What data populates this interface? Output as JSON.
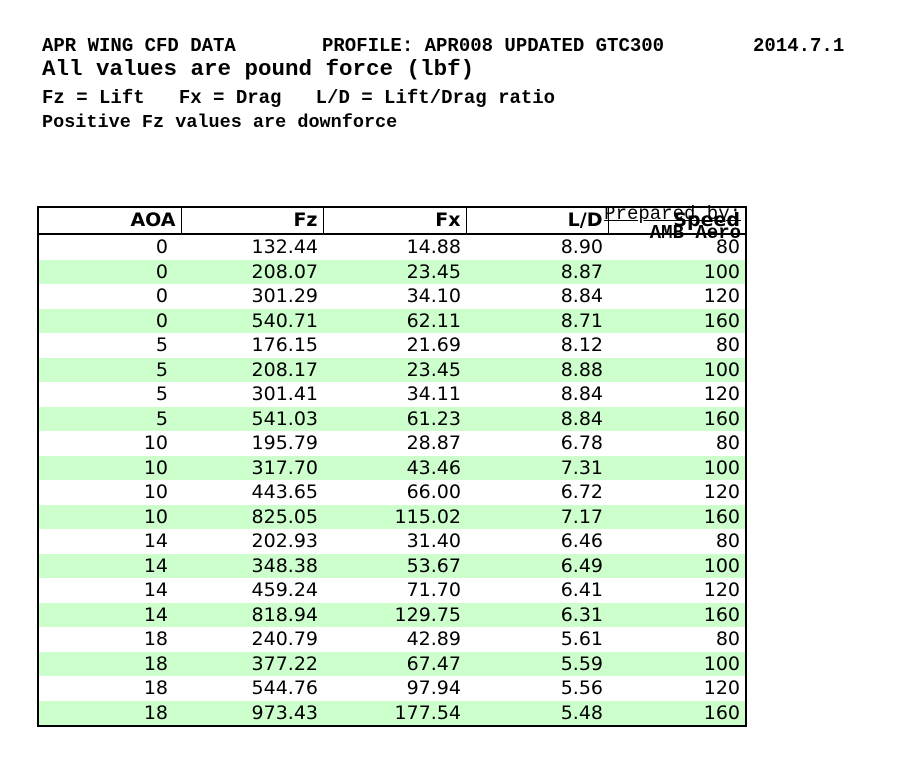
{
  "header": {
    "title": "APR WING CFD DATA",
    "profile": "PROFILE: APR008 UPDATED GTC300",
    "date": "2014.7.1",
    "subtitle": "All values are pound force (lbf)",
    "legend": "Fz = Lift   Fx = Drag   L/D = Lift/Drag ratio",
    "note": "Positive Fz values are downforce"
  },
  "prepared_by": {
    "label": "Prepared by:",
    "value": "AMB Aero"
  },
  "table": {
    "columns": [
      "AOA",
      "Fz",
      "Fx",
      "L/D",
      "Speed"
    ],
    "rows": [
      [
        "0",
        "132.44",
        "14.88",
        "8.90",
        "80"
      ],
      [
        "0",
        "208.07",
        "23.45",
        "8.87",
        "100"
      ],
      [
        "0",
        "301.29",
        "34.10",
        "8.84",
        "120"
      ],
      [
        "0",
        "540.71",
        "62.11",
        "8.71",
        "160"
      ],
      [
        "5",
        "176.15",
        "21.69",
        "8.12",
        "80"
      ],
      [
        "5",
        "208.17",
        "23.45",
        "8.88",
        "100"
      ],
      [
        "5",
        "301.41",
        "34.11",
        "8.84",
        "120"
      ],
      [
        "5",
        "541.03",
        "61.23",
        "8.84",
        "160"
      ],
      [
        "10",
        "195.79",
        "28.87",
        "6.78",
        "80"
      ],
      [
        "10",
        "317.70",
        "43.46",
        "7.31",
        "100"
      ],
      [
        "10",
        "443.65",
        "66.00",
        "6.72",
        "120"
      ],
      [
        "10",
        "825.05",
        "115.02",
        "7.17",
        "160"
      ],
      [
        "14",
        "202.93",
        "31.40",
        "6.46",
        "80"
      ],
      [
        "14",
        "348.38",
        "53.67",
        "6.49",
        "100"
      ],
      [
        "14",
        "459.24",
        "71.70",
        "6.41",
        "120"
      ],
      [
        "14",
        "818.94",
        "129.75",
        "6.31",
        "160"
      ],
      [
        "18",
        "240.79",
        "42.89",
        "5.61",
        "80"
      ],
      [
        "18",
        "377.22",
        "67.47",
        "5.59",
        "100"
      ],
      [
        "18",
        "544.76",
        "97.94",
        "5.56",
        "120"
      ],
      [
        "18",
        "973.43",
        "177.54",
        "5.48",
        "160"
      ]
    ]
  },
  "colors": {
    "row_alt_green": "#ccffcc",
    "border": "#000000",
    "background": "#ffffff"
  }
}
